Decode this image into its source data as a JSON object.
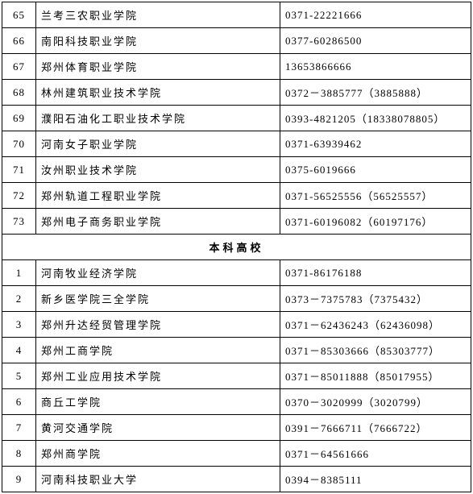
{
  "section1": {
    "rows": [
      {
        "num": "65",
        "name": "兰考三农职业学院",
        "phone": "0371-22221666"
      },
      {
        "num": "66",
        "name": "南阳科技职业学院",
        "phone": "0377-60286500"
      },
      {
        "num": "67",
        "name": "郑州体育职业学院",
        "phone": "13653866666"
      },
      {
        "num": "68",
        "name": "林州建筑职业技术学院",
        "phone": "0372－3885777（3885888）"
      },
      {
        "num": "69",
        "name": "濮阳石油化工职业技术学院",
        "phone": "0393-4821205（18338078805）"
      },
      {
        "num": "70",
        "name": "河南女子职业学院",
        "phone": "0371-63939462"
      },
      {
        "num": "71",
        "name": "汝州职业技术学院",
        "phone": "0375-6019666"
      },
      {
        "num": "72",
        "name": "郑州轨道工程职业学院",
        "phone": "0371-56525556（56525557）"
      },
      {
        "num": "73",
        "name": "郑州电子商务职业学院",
        "phone": "0371-60196082（60197176）"
      }
    ]
  },
  "section2": {
    "header": "本科高校",
    "rows": [
      {
        "num": "1",
        "name": "河南牧业经济学院",
        "phone": "0371-86176188"
      },
      {
        "num": "2",
        "name": "新乡医学院三全学院",
        "phone": "0373－7375783（7375432）"
      },
      {
        "num": "3",
        "name": "郑州升达经贸管理学院",
        "phone": "0371－62436243（62436098）"
      },
      {
        "num": "4",
        "name": "郑州工商学院",
        "phone": "0371－85303666（85303777）"
      },
      {
        "num": "5",
        "name": "郑州工业应用技术学院",
        "phone": "0371－85011888（85017955）"
      },
      {
        "num": "6",
        "name": "商丘工学院",
        "phone": "0370－3020999（3020799）"
      },
      {
        "num": "7",
        "name": "黄河交通学院",
        "phone": "0391－7666711（7666722）"
      },
      {
        "num": "8",
        "name": "郑州商学院",
        "phone": "0371－64561666"
      },
      {
        "num": "9",
        "name": "河南科技职业大学",
        "phone": "0394－8385111"
      }
    ]
  }
}
